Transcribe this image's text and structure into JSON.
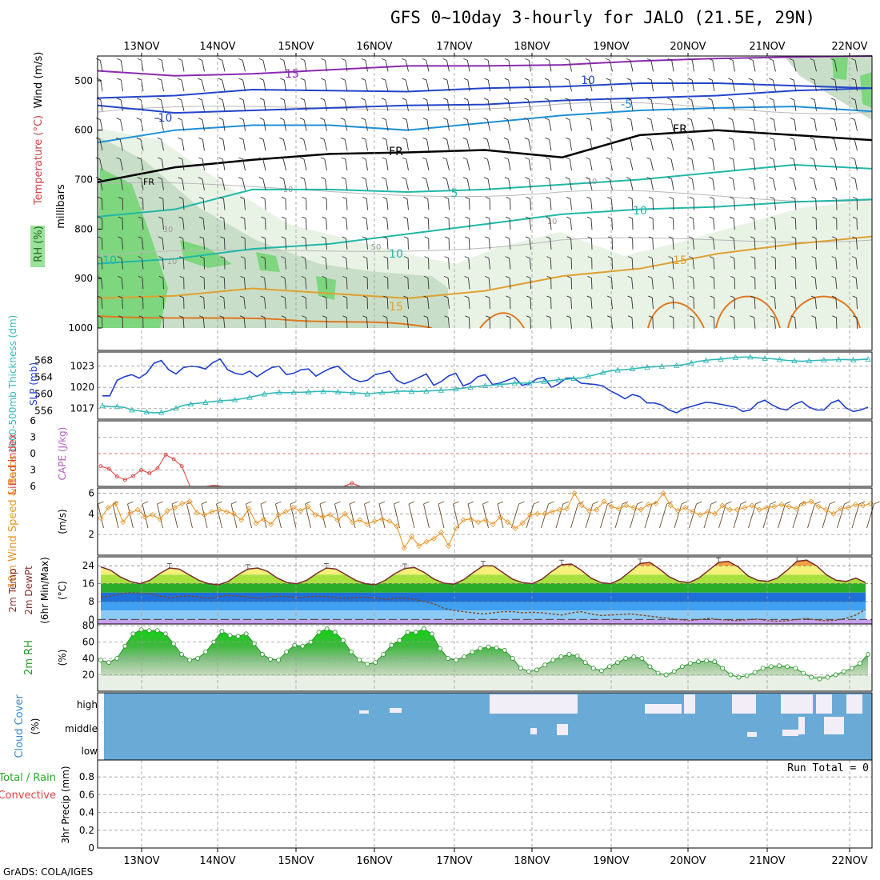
{
  "title": "GFS 0~10day 3-hourly for JALO (21.5E, 29N)",
  "credit": "GrADS: COLA/IGES",
  "dates": [
    "13NOV",
    "14NOV",
    "15NOV",
    "16NOV",
    "17NOV",
    "18NOV",
    "19NOV",
    "20NOV",
    "21NOV",
    "22NOV"
  ],
  "colors": {
    "grid": "#9a9a9a",
    "slp": "#1f3fcf",
    "thickness": "#33b8b8",
    "lifted": "#e04040",
    "wind10": "#e8962a",
    "barb": "#6b4a2a",
    "temp": "#7a2e2e",
    "dew": "#7a4a2a",
    "rh": "#2a9a2a",
    "cloud": "#6aaad6",
    "cloudClear": "#f2eef8"
  },
  "chart_data": [
    {
      "type": "contour",
      "panel": "upper-air",
      "labels": {
        "rh": "RH (%)",
        "temp": "Temperature (°C)",
        "wind": "Wind (m/s)",
        "axis": "millibars"
      },
      "ylim": [
        1000,
        450
      ],
      "yticks": [
        500,
        600,
        700,
        800,
        900,
        1000
      ],
      "isotherms": [
        {
          "label": "15",
          "color": "#8a2ab0",
          "p": [
            480,
            490,
            486,
            478,
            470,
            470,
            468,
            460,
            455,
            452,
            450
          ]
        },
        {
          "label": "10",
          "color": "#2244cc",
          "p": [
            535,
            530,
            518,
            520,
            522,
            515,
            512,
            505,
            505,
            510,
            515
          ]
        },
        {
          "label": "-10",
          "color": "#2244cc",
          "p": [
            550,
            565,
            560,
            555,
            550,
            548,
            540,
            535,
            530,
            520,
            515
          ]
        },
        {
          "label": "-5",
          "color": "#1e90d8",
          "p": [
            625,
            600,
            590,
            590,
            600,
            585,
            570,
            560,
            555,
            552,
            562
          ]
        },
        {
          "label": "FR",
          "color": "#000000",
          "p": [
            705,
            675,
            660,
            648,
            645,
            640,
            655,
            610,
            600,
            610,
            620
          ]
        },
        {
          "label": "5",
          "color": "#20b8a8",
          "p": [
            775,
            760,
            720,
            720,
            725,
            720,
            710,
            700,
            685,
            670,
            678
          ]
        },
        {
          "label": "10",
          "color": "#20b8a8",
          "p": [
            870,
            860,
            840,
            830,
            810,
            790,
            770,
            760,
            755,
            745,
            740
          ]
        },
        {
          "label": "15",
          "color": "#e0a030",
          "p": [
            940,
            935,
            920,
            930,
            940,
            925,
            895,
            880,
            850,
            830,
            815
          ]
        }
      ],
      "contour_labels": [
        "15",
        "10",
        "-10",
        "-5",
        "FR",
        "FR",
        "5",
        "10",
        "10",
        "10",
        "15",
        "15"
      ],
      "rh_labels": [
        "30",
        "10",
        "50",
        "10",
        "10",
        "10"
      ]
    },
    {
      "type": "line",
      "panel": "slp-thickness",
      "labels": {
        "thickness": "1000-500mb Thickness (dm)",
        "slp": "SLP (mb)"
      },
      "left_ticks": [
        556,
        560,
        564,
        568
      ],
      "right_ticks": [
        1017,
        1020,
        1023
      ],
      "series": [
        {
          "name": "SLP (mb)",
          "axis": "right",
          "ylim": [
            1015.5,
            1025
          ],
          "values": [
            1018.8,
            1018.8,
            1021.0,
            1021.5,
            1021.8,
            1021.3,
            1022.0,
            1023.4,
            1023.8,
            1022.5,
            1021.9,
            1022.8,
            1023.0,
            1022.9,
            1022.6,
            1023.5,
            1024.0,
            1022.5,
            1022.0,
            1021.8,
            1022.3,
            1021.5,
            1022.2,
            1022.8,
            1023.0,
            1021.8,
            1022.0,
            1022.5,
            1022.6,
            1021.6,
            1022.2,
            1022.7,
            1023.0,
            1022.0,
            1021.2,
            1020.8,
            1021.0,
            1021.8,
            1022.0,
            1022.3,
            1021.0,
            1020.5,
            1020.9,
            1021.4,
            1021.9,
            1020.3,
            1020.8,
            1021.6,
            1022.0,
            1020.2,
            1020.6,
            1021.5,
            1021.8,
            1020.4,
            1020.6,
            1021.0,
            1021.4,
            1020.3,
            1020.5,
            1021.2,
            1021.4,
            1020.0,
            1020.5,
            1021.3,
            1021.3,
            1020.6,
            1020.5,
            1020.4,
            1020.2,
            1019.5,
            1019.0,
            1018.4,
            1019.0,
            1018.7,
            1017.8,
            1017.8,
            1017.5,
            1016.8,
            1016.4,
            1017.0,
            1017.3,
            1017.6,
            1017.9,
            1017.8,
            1017.6,
            1017.4,
            1017.2,
            1016.6,
            1016.8,
            1017.8,
            1018.2,
            1017.5,
            1017.0,
            1016.8,
            1017.6,
            1018.0,
            1017.2,
            1016.8,
            1016.8,
            1017.8,
            1018.2,
            1017.1,
            1016.6,
            1016.8,
            1017.2
          ]
        },
        {
          "name": "1000-500mb Thickness (dm)",
          "axis": "left",
          "ylim": [
            554,
            570
          ],
          "values": [
            557.2,
            557.0,
            557.0,
            556.8,
            556.2,
            556.0,
            555.7,
            555.5,
            555.6,
            556.0,
            556.6,
            557.3,
            557.6,
            557.8,
            558.0,
            558.2,
            558.4,
            558.5,
            558.6,
            558.9,
            559.2,
            559.6,
            560.0,
            560.2,
            560.4,
            560.3,
            560.4,
            560.4,
            560.5,
            560.6,
            560.6,
            560.6,
            560.5,
            560.4,
            560.3,
            560.2,
            560.0,
            560.2,
            560.4,
            560.4,
            560.6,
            560.7,
            560.6,
            560.6,
            560.7,
            560.8,
            560.9,
            561.0,
            561.2,
            561.4,
            561.6,
            561.8,
            562.0,
            562.1,
            562.3,
            562.4,
            562.6,
            562.6,
            562.6,
            562.8,
            563.0,
            563.2,
            563.4,
            563.5,
            563.7,
            563.8,
            564.2,
            564.6,
            565.1,
            565.5,
            565.7,
            565.8,
            566.0,
            566.2,
            566.4,
            566.5,
            566.6,
            566.7,
            566.8,
            567.0,
            567.4,
            567.8,
            568.0,
            568.2,
            568.3,
            568.5,
            568.7,
            568.8,
            568.8,
            568.6,
            568.5,
            568.4,
            568.2,
            568.0,
            567.9,
            567.8,
            567.9,
            568.0,
            568.1,
            568.1,
            568.2,
            568.2,
            568.1,
            568.2,
            568.3
          ]
        }
      ]
    },
    {
      "type": "line",
      "panel": "stability",
      "labels": {
        "lifted": "Lifted Index",
        "cape": "CAPE (J/kg)"
      },
      "yticks": [
        "6",
        "3",
        "0",
        "3",
        "6"
      ],
      "ylim": [
        -6,
        6
      ],
      "series": [
        {
          "name": "Lifted Index",
          "values": [
            -2.3,
            -2.8,
            -4.2,
            -4.8,
            -4.1,
            -3.0,
            -3.6,
            -2.7,
            -0.2,
            -1.0,
            -2.3,
            -6.0,
            -6.0,
            -6.0,
            -5.8,
            -6.0,
            -6.0,
            -6.0,
            -6.0,
            -6.0,
            -6.0,
            -6.0,
            -6.0,
            -6.0,
            -6.0,
            -6.0,
            -6.0,
            -6.0,
            -6.0,
            -6.0,
            -6.0,
            -5.4,
            -6.0
          ]
        }
      ]
    },
    {
      "type": "line",
      "panel": "wind10m",
      "labels": {
        "speed": "10m Wind Speed & Barbs",
        "unit": "(m/s)"
      },
      "yticks": [
        2,
        4,
        6
      ],
      "ylim": [
        0,
        6.5
      ],
      "series": [
        {
          "name": "10m Wind Speed",
          "values": [
            3.6,
            4.6,
            5.0,
            3.2,
            4.1,
            4.4,
            3.7,
            3.9,
            3.5,
            4.3,
            4.6,
            5.0,
            5.2,
            4.1,
            3.9,
            4.2,
            4.4,
            4.2,
            4.0,
            3.4,
            4.5,
            3.1,
            3.5,
            3.0,
            3.9,
            4.2,
            4.6,
            4.3,
            4.7,
            3.9,
            3.7,
            3.9,
            3.4,
            4.0,
            3.2,
            3.4,
            3.0,
            3.3,
            3.5,
            3.3,
            2.8,
            0.7,
            1.8,
            0.9,
            1.3,
            1.6,
            2.2,
            0.9,
            2.6,
            3.4,
            3.5,
            3.2,
            3.4,
            3.0,
            3.7,
            3.2,
            2.6,
            3.1,
            3.9,
            4.0,
            4.0,
            4.2,
            4.4,
            4.5,
            6.0,
            4.8,
            4.3,
            4.4,
            5.2,
            4.7,
            4.5,
            4.8,
            4.6,
            4.4,
            4.9,
            5.0,
            6.0,
            4.8,
            4.3,
            4.6,
            4.2,
            3.9,
            4.2,
            4.0,
            4.8,
            4.4,
            4.4,
            4.6,
            4.8,
            4.4,
            4.6,
            4.7,
            4.9,
            4.7,
            4.5,
            5.0,
            5.2,
            4.7,
            4.4,
            4.0,
            4.5,
            4.6,
            4.9,
            4.8,
            5.0
          ]
        }
      ]
    },
    {
      "type": "area",
      "panel": "temperature",
      "labels": {
        "temp": "2m Temp",
        "dew": "2m DewPt",
        "minmax": "(6hr Min/Max)",
        "unit": "(°C)"
      },
      "yticks": [
        0,
        8,
        16,
        24
      ],
      "ylim": [
        -2,
        28
      ],
      "series": [
        {
          "name": "2m Temp",
          "values": [
            23.5,
            22.0,
            19.0,
            17.0,
            16.0,
            17.5,
            20.5,
            23.0,
            22.5,
            20.0,
            17.5,
            16.0,
            15.5,
            17.0,
            20.0,
            22.5,
            23.0,
            21.5,
            18.5,
            16.5,
            16.0,
            17.5,
            20.5,
            23.0,
            22.5,
            20.0,
            17.5,
            16.0,
            15.5,
            17.5,
            20.5,
            22.8,
            23.2,
            21.0,
            18.0,
            16.2,
            15.8,
            17.8,
            21.0,
            24.0,
            24.0,
            21.0,
            18.0,
            16.5,
            16.0,
            18.0,
            21.5,
            24.5,
            24.8,
            22.0,
            18.5,
            16.5,
            16.0,
            18.0,
            21.5,
            25.0,
            25.5,
            22.5,
            19.0,
            17.0,
            16.5,
            18.5,
            22.0,
            25.5,
            26.0,
            23.5,
            19.5,
            17.5,
            17.0,
            18.5,
            22.0,
            26.0,
            26.5,
            24.0,
            20.0,
            17.5,
            17.0,
            18.5,
            16.5
          ]
        },
        {
          "name": "2m DewPt",
          "values": [
            10.0,
            10.5,
            11.5,
            12.0,
            11.8,
            11.5,
            10.5,
            9.8,
            10.2,
            10.6,
            10.0,
            9.5,
            10.2,
            10.8,
            10.5,
            10.0,
            9.5,
            10.0,
            10.5,
            10.2,
            9.8,
            10.0,
            10.4,
            10.2,
            9.8,
            9.5,
            9.8,
            10.0,
            9.6,
            9.0,
            9.4,
            9.6,
            9.0,
            8.0,
            7.0,
            5.0,
            4.0,
            3.5,
            3.0,
            2.5,
            3.0,
            3.5,
            3.5,
            3.0,
            3.2,
            3.0,
            2.5,
            2.0,
            3.0,
            3.5,
            2.5,
            1.8,
            2.0,
            2.2,
            2.5,
            2.0,
            1.5,
            1.0,
            0.5,
            0.0,
            -0.5,
            0.0,
            0.5,
            0.0,
            -0.3,
            -0.5,
            0.0,
            0.2,
            -0.5,
            -0.8,
            -0.5,
            0.0,
            0.5,
            -0.2,
            -0.6,
            -0.3,
            0.5,
            2.0,
            4.5
          ]
        }
      ]
    },
    {
      "type": "area",
      "panel": "rh2m",
      "labels": {
        "rh": "2m RH",
        "unit": "(%)"
      },
      "yticks": [
        20,
        40,
        60,
        80
      ],
      "ylim": [
        0,
        82
      ],
      "series": [
        {
          "name": "2m RH",
          "values": [
            38,
            35,
            40,
            55,
            70,
            75,
            74,
            74,
            70,
            58,
            45,
            38,
            40,
            48,
            60,
            73,
            68,
            67,
            70,
            58,
            45,
            39,
            38,
            48,
            56,
            55,
            60,
            72,
            76,
            72,
            62,
            48,
            38,
            33,
            35,
            45,
            56,
            62,
            72,
            72,
            76,
            70,
            52,
            40,
            38,
            42,
            48,
            52,
            54,
            53,
            50,
            40,
            28,
            24,
            26,
            32,
            38,
            42,
            45,
            43,
            35,
            28,
            25,
            30,
            35,
            40,
            42,
            40,
            30,
            22,
            20,
            24,
            30,
            34,
            36,
            37,
            36,
            28,
            20,
            17,
            19,
            23,
            28,
            30,
            31,
            30,
            28,
            22,
            17,
            15,
            17,
            20,
            24,
            28,
            34,
            45
          ]
        }
      ]
    },
    {
      "type": "heatmap",
      "panel": "cloud",
      "labels": {
        "title": "Cloud Cover",
        "unit": "(%)",
        "high": "high",
        "middle": "middle",
        "low": "low"
      }
    },
    {
      "type": "bar",
      "panel": "precip",
      "labels": {
        "total": "Total / Rain",
        "conv": "Convective",
        "axis": "3hr Precip (mm)",
        "run": "Run Total = 0"
      },
      "yticks": [
        "0",
        "0.2",
        "0.4",
        "0.6",
        "0.8"
      ],
      "ylim": [
        0,
        1
      ],
      "values": []
    }
  ]
}
